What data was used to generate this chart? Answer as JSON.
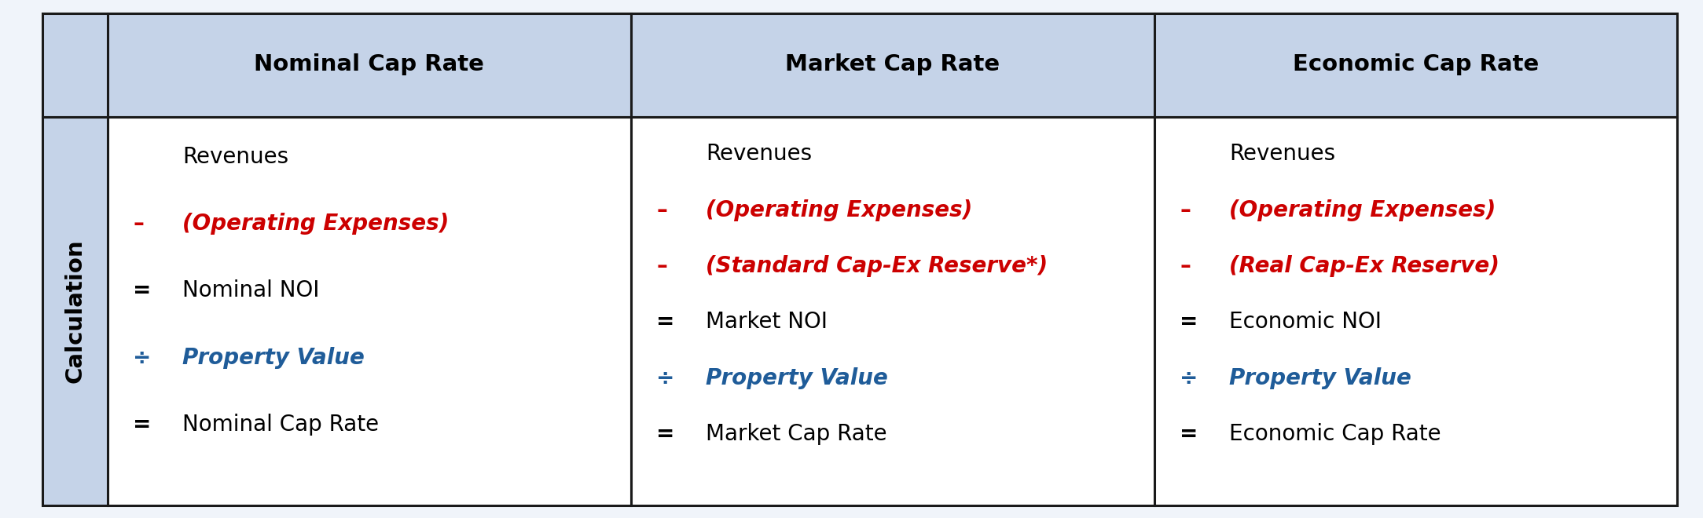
{
  "header_bg_color": "#C5D3E8",
  "body_bg_color": "#F0F4FA",
  "cell_bg_color": "#FFFFFF",
  "border_color": "#1A1A1A",
  "row_label_bg_color": "#C5D3E8",
  "header_text_color": "#000000",
  "row_label_text_color": "#000000",
  "black_color": "#000000",
  "red_color": "#CC0000",
  "blue_color": "#1F5C99",
  "col_headers": [
    "Nominal Cap Rate",
    "Market Cap Rate",
    "Economic Cap Rate"
  ],
  "row_label": "Calculation",
  "col1_lines": [
    {
      "symbol": "",
      "text": "Revenues",
      "color": "black",
      "bold": false,
      "italic": false
    },
    {
      "symbol": "–",
      "text": "(Operating Expenses)",
      "color": "red",
      "bold": true,
      "italic": true
    },
    {
      "symbol": "=",
      "text": "Nominal NOI",
      "color": "black",
      "bold": false,
      "italic": false
    },
    {
      "symbol": "÷",
      "text": "Property Value",
      "color": "blue",
      "bold": true,
      "italic": true
    },
    {
      "symbol": "=",
      "text": "Nominal Cap Rate",
      "color": "black",
      "bold": false,
      "italic": false
    }
  ],
  "col2_lines": [
    {
      "symbol": "",
      "text": "Revenues",
      "color": "black",
      "bold": false,
      "italic": false
    },
    {
      "symbol": "–",
      "text": "(Operating Expenses)",
      "color": "red",
      "bold": true,
      "italic": true
    },
    {
      "symbol": "–",
      "text": "(Standard Cap-Ex Reserve*)",
      "color": "red",
      "bold": true,
      "italic": true
    },
    {
      "symbol": "=",
      "text": "Market NOI",
      "color": "black",
      "bold": false,
      "italic": false
    },
    {
      "symbol": "÷",
      "text": "Property Value",
      "color": "blue",
      "bold": true,
      "italic": true
    },
    {
      "symbol": "=",
      "text": "Market Cap Rate",
      "color": "black",
      "bold": false,
      "italic": false
    }
  ],
  "col3_lines": [
    {
      "symbol": "",
      "text": "Revenues",
      "color": "black",
      "bold": false,
      "italic": false
    },
    {
      "symbol": "–",
      "text": "(Operating Expenses)",
      "color": "red",
      "bold": true,
      "italic": true
    },
    {
      "symbol": "–",
      "text": "(Real Cap-Ex Reserve)",
      "color": "red",
      "bold": true,
      "italic": true
    },
    {
      "symbol": "=",
      "text": "Economic NOI",
      "color": "black",
      "bold": false,
      "italic": false
    },
    {
      "symbol": "÷",
      "text": "Property Value",
      "color": "blue",
      "bold": true,
      "italic": true
    },
    {
      "symbol": "=",
      "text": "Economic Cap Rate",
      "color": "black",
      "bold": false,
      "italic": false
    }
  ],
  "figsize": [
    21.67,
    6.6
  ],
  "dpi": 100
}
